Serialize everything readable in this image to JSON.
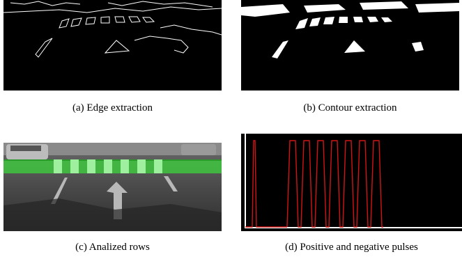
{
  "figure": {
    "panels": [
      {
        "id": "a",
        "caption": "(a) Edge extraction"
      },
      {
        "id": "b",
        "caption": "(b) Contour extraction"
      },
      {
        "id": "c",
        "caption": "(c) Analized rows"
      },
      {
        "id": "d",
        "caption": "(d) Positive and negative pulses"
      }
    ]
  },
  "colors": {
    "background": "#000000",
    "edges": "#ffffff",
    "highlight_rows": "#3fbf3f",
    "pulses": "#d21414",
    "baseline": "#ffffff"
  }
}
